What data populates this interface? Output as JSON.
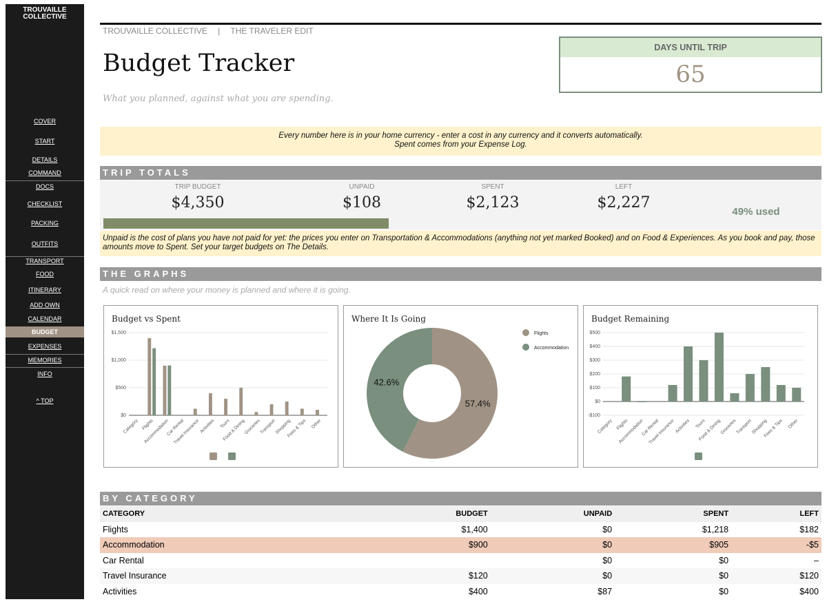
{
  "sidebar": {
    "brand": "TROUVAILLE COLLECTIVE",
    "links": [
      "COVER",
      "START",
      "DETAILS",
      "COMMAND",
      "DOCS",
      "CHECKLIST",
      "PACKING",
      "OUTFITS",
      "TRANSPORT",
      "FOOD",
      "ITINERARY",
      "ADD OWN",
      "CALENDAR",
      "BUDGET",
      "EXPENSES",
      "MEMORIES",
      "INFO",
      "^ TOP"
    ]
  },
  "header": {
    "brand": "TROUVAILLE COLLECTIVE",
    "separator": "|",
    "edition": "THE TRAVELER EDIT",
    "title": "Budget Tracker",
    "subtitle": "What you planned, against what you are spending."
  },
  "countdown": {
    "label": "DAYS UNTIL TRIP",
    "value": 65
  },
  "currency_note": [
    "Every number here is in your home currency - enter a cost in any currency and it converts automatically.",
    "Spent comes from your Expense Log."
  ],
  "trip_totals": {
    "heading": "TRIP TOTALS",
    "items": [
      {
        "label": "TRIP BUDGET",
        "value": "$4,350"
      },
      {
        "label": "UNPAID",
        "value": "$108"
      },
      {
        "label": "SPENT",
        "value": "$2,123"
      },
      {
        "label": "LEFT",
        "value": "$2,227"
      }
    ],
    "used": {
      "value": 49,
      "label": "49% used"
    },
    "note": "Unpaid is the cost of plans you have not paid for yet: the prices you enter on Transportation & Accommodations (anything not yet marked Booked) and on Food & Experiences. As you book and pay, those amounts move to Spent. Set your target budgets on The Details."
  },
  "graphs": {
    "heading": "THE GRAPHS",
    "subtitle": "A quick read on where your money is planned and where it is going."
  },
  "chart_data": [
    {
      "type": "bar",
      "title": "Budget vs Spent",
      "categories": [
        "Category",
        "Flights",
        "Accommodation",
        "Car Rental",
        "Travel Insurance",
        "Activities",
        "Tours",
        "Food & Dining",
        "Groceries",
        "Transport",
        "Shopping",
        "Fees & Tips",
        "Other"
      ],
      "series": [
        {
          "color": "#a09385",
          "values": [
            null,
            1400,
            900,
            0,
            120,
            400,
            300,
            500,
            60,
            200,
            250,
            120,
            100
          ]
        },
        {
          "color": "#7a8f7e",
          "values": [
            null,
            1218,
            905,
            0,
            0,
            0,
            0,
            0,
            0,
            0,
            0,
            0,
            0
          ]
        }
      ],
      "ylim": [
        0,
        1500
      ],
      "yticks": [
        {
          "value": 0,
          "label": "$0"
        },
        {
          "value": 500,
          "label": "$500"
        },
        {
          "value": 1000,
          "label": "$1,000"
        },
        {
          "value": 1500,
          "label": "$1,500"
        }
      ],
      "grid": true
    },
    {
      "type": "pie",
      "title": "Where It Is Going",
      "categories": [
        "Flights",
        "Accommodation"
      ],
      "values": [
        57.4,
        42.6
      ],
      "value_labels": [
        "57.4%",
        "42.6%"
      ],
      "colors": [
        "#a09385",
        "#7a8f7e"
      ],
      "legend": "right"
    },
    {
      "type": "bar",
      "title": "Budget Remaining",
      "categories": [
        "Category",
        "Flights",
        "Accommodation",
        "Car Rental",
        "Travel Insurance",
        "Activities",
        "Tours",
        "Food & Dining",
        "Groceries",
        "Transport",
        "Shopping",
        "Fees & Tips",
        "Other"
      ],
      "series": [
        {
          "color": "#7a8f7e",
          "values": [
            null,
            182,
            -5,
            0,
            120,
            400,
            300,
            500,
            60,
            200,
            250,
            120,
            100
          ]
        }
      ],
      "ylim": [
        -100,
        500
      ],
      "yticks": [
        {
          "value": -100,
          "label": "-$100"
        },
        {
          "value": 0,
          "label": "$0"
        },
        {
          "value": 100,
          "label": "$100"
        },
        {
          "value": 200,
          "label": "$200"
        },
        {
          "value": 300,
          "label": "$300"
        },
        {
          "value": 400,
          "label": "$400"
        },
        {
          "value": 500,
          "label": "$500"
        }
      ],
      "grid": true
    }
  ],
  "by_category": {
    "heading": "BY CATEGORY",
    "columns": [
      "CATEGORY",
      "BUDGET",
      "UNPAID",
      "SPENT",
      "LEFT"
    ],
    "rows": [
      [
        "Flights",
        "$1,400",
        "$0",
        "$1,218",
        "$182"
      ],
      [
        "Accommodation",
        "$900",
        "$0",
        "$905",
        "-$5"
      ],
      [
        "Car Rental",
        null,
        "$0",
        "$0",
        "–"
      ],
      [
        "Travel Insurance",
        "$120",
        "$0",
        "$0",
        "$120"
      ],
      [
        "Activities",
        "$400",
        "$87",
        "$0",
        "$400"
      ]
    ]
  }
}
